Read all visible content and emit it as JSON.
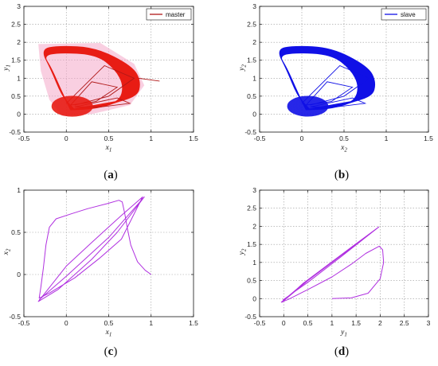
{
  "colors": {
    "master": "#b01818",
    "master_fill": "#e81c14",
    "slave": "#1010e6",
    "phase": "#b030e0"
  },
  "chart_data": [
    {
      "id": "a",
      "type": "line",
      "caption": "a",
      "xlabel": "x",
      "xlabel_sub": "1",
      "ylabel": "y",
      "ylabel_sub": "1",
      "xlim": [
        -0.5,
        1.5
      ],
      "ylim": [
        -0.5,
        3
      ],
      "xticks": [
        "-0.5",
        "0",
        "0.5",
        "1",
        "1.5"
      ],
      "yticks": [
        "-0.5",
        "0",
        "0.5",
        "1",
        "1.5",
        "2",
        "2.5",
        "3"
      ],
      "grid": true,
      "legend": {
        "label": "master",
        "position": "top-right"
      },
      "series": [
        {
          "name": "master",
          "color_key": "master",
          "kind": "attractor"
        }
      ]
    },
    {
      "id": "b",
      "type": "line",
      "caption": "b",
      "xlabel": "x",
      "xlabel_sub": "2",
      "ylabel": "y",
      "ylabel_sub": "2",
      "xlim": [
        -0.5,
        1.5
      ],
      "ylim": [
        -0.5,
        3
      ],
      "xticks": [
        "-0.5",
        "0",
        "0.5",
        "1",
        "1.5"
      ],
      "yticks": [
        "-0.5",
        "0",
        "0.5",
        "1",
        "1.5",
        "2",
        "2.5",
        "3"
      ],
      "grid": true,
      "legend": {
        "label": "slave",
        "position": "top-right"
      },
      "series": [
        {
          "name": "slave",
          "color_key": "slave",
          "kind": "attractor"
        }
      ]
    },
    {
      "id": "c",
      "type": "line",
      "caption": "c",
      "xlabel": "x",
      "xlabel_sub": "1",
      "ylabel": "x",
      "ylabel_sub": "2",
      "xlim": [
        -0.5,
        1.5
      ],
      "ylim": [
        -0.5,
        1
      ],
      "xticks": [
        "-0.5",
        "0",
        "0.5",
        "1",
        "1.5"
      ],
      "yticks": [
        "-0.5",
        "0",
        "0.5",
        "1"
      ],
      "grid": true,
      "series": [
        {
          "color_key": "phase",
          "points": [
            [
              1.0,
              0.0
            ],
            [
              0.93,
              0.05
            ],
            [
              0.84,
              0.15
            ],
            [
              0.76,
              0.35
            ],
            [
              0.72,
              0.55
            ],
            [
              0.69,
              0.72
            ],
            [
              0.66,
              0.86
            ],
            [
              0.62,
              0.88
            ],
            [
              0.48,
              0.84
            ],
            [
              0.25,
              0.78
            ],
            [
              0.06,
              0.72
            ],
            [
              -0.12,
              0.66
            ],
            [
              -0.2,
              0.56
            ],
            [
              -0.24,
              0.35
            ],
            [
              -0.27,
              0.08
            ],
            [
              -0.3,
              -0.15
            ],
            [
              -0.32,
              -0.28
            ],
            [
              -0.2,
              -0.22
            ],
            [
              0.1,
              -0.04
            ],
            [
              0.4,
              0.2
            ],
            [
              0.65,
              0.42
            ],
            [
              0.9,
              0.92
            ],
            [
              0.65,
              0.7
            ],
            [
              0.3,
              0.38
            ],
            [
              0.0,
              0.1
            ],
            [
              -0.33,
              -0.32
            ],
            [
              -0.1,
              -0.18
            ],
            [
              0.3,
              0.18
            ],
            [
              0.6,
              0.5
            ],
            [
              0.92,
              0.92
            ],
            [
              0.5,
              0.44
            ],
            [
              0.0,
              -0.02
            ],
            [
              -0.32,
              -0.3
            ]
          ]
        }
      ]
    },
    {
      "id": "d",
      "type": "line",
      "caption": "d",
      "xlabel": "y",
      "xlabel_sub": "1",
      "ylabel": "y",
      "ylabel_sub": "2",
      "xlim": [
        -0.5,
        3
      ],
      "ylim": [
        -0.5,
        3
      ],
      "xticks": [
        "-0.5",
        "0",
        "0.5",
        "1",
        "1.5",
        "2",
        "2.5",
        "3"
      ],
      "yticks": [
        "-0.5",
        "0",
        "0.5",
        "1",
        "1.5",
        "2",
        "2.5",
        "3"
      ],
      "grid": true,
      "series": [
        {
          "color_key": "phase",
          "points": [
            [
              1.0,
              0.0
            ],
            [
              1.4,
              0.02
            ],
            [
              1.75,
              0.15
            ],
            [
              2.0,
              0.55
            ],
            [
              2.07,
              1.0
            ],
            [
              2.05,
              1.35
            ],
            [
              1.98,
              1.45
            ],
            [
              1.7,
              1.25
            ],
            [
              1.4,
              0.95
            ],
            [
              1.0,
              0.6
            ],
            [
              0.5,
              0.25
            ],
            [
              0.1,
              -0.02
            ],
            [
              -0.05,
              -0.1
            ],
            [
              0.3,
              0.3
            ],
            [
              0.8,
              0.8
            ],
            [
              1.3,
              1.3
            ],
            [
              1.95,
              1.96
            ],
            [
              1.5,
              1.5
            ],
            [
              1.0,
              1.0
            ],
            [
              0.5,
              0.5
            ],
            [
              0.0,
              -0.06
            ],
            [
              -0.03,
              -0.1
            ],
            [
              0.4,
              0.42
            ],
            [
              0.9,
              0.92
            ],
            [
              1.4,
              1.42
            ],
            [
              1.97,
              1.98
            ],
            [
              1.2,
              1.17
            ],
            [
              0.5,
              0.45
            ],
            [
              -0.02,
              -0.04
            ]
          ]
        }
      ]
    }
  ]
}
